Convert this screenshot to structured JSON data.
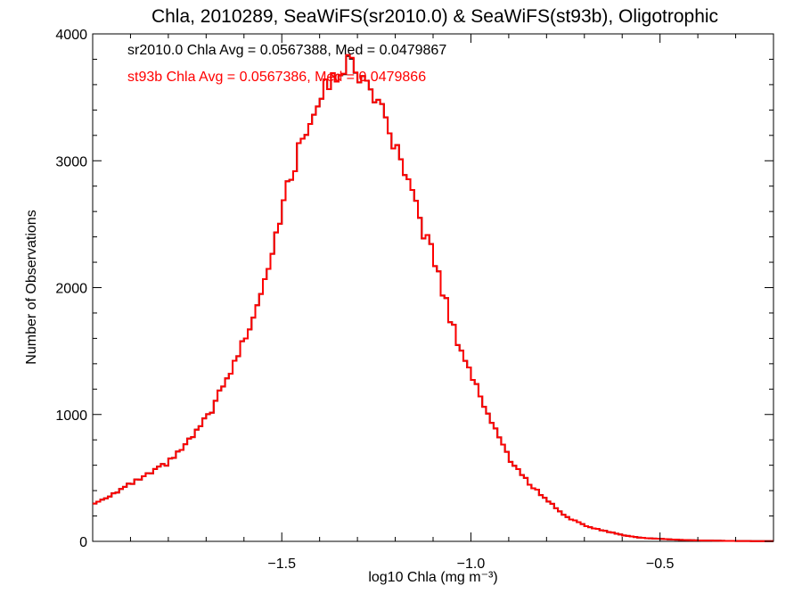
{
  "chart_data": {
    "type": "line",
    "title": "Chla, 2010289, SeaWiFS(sr2010.0) & SeaWiFS(st93b), Oligotrophic",
    "xlabel": "log10 Chla (mg m⁻³)",
    "ylabel": "Number of Observations",
    "xlim": [
      -2.0,
      -0.2
    ],
    "ylim": [
      0,
      4000
    ],
    "xticks": [
      -1.5,
      -1.0,
      -0.5
    ],
    "xtick_labels": [
      "−1.5",
      "−1.0",
      "−0.5"
    ],
    "yticks": [
      0,
      1000,
      2000,
      3000,
      4000
    ],
    "ytick_labels": [
      "0",
      "1000",
      "2000",
      "3000",
      "4000"
    ],
    "grid": false,
    "annotations": [
      {
        "text": "sr2010.0 Chla Avg = 0.0567388, Med = 0.0479867",
        "color": "#000000"
      },
      {
        "text": "st93b Chla Avg = 0.0567386, Med = 0.0479866",
        "color": "#ff0000"
      }
    ],
    "series": [
      {
        "color": "#000000",
        "x": [
          -2.0,
          -1.95,
          -1.9,
          -1.85,
          -1.8,
          -1.75,
          -1.7,
          -1.65,
          -1.6,
          -1.55,
          -1.5,
          -1.45,
          -1.4,
          -1.35,
          -1.32,
          -1.3,
          -1.28,
          -1.25,
          -1.2,
          -1.15,
          -1.1,
          -1.05,
          -1.0,
          -0.95,
          -0.9,
          -0.85,
          -0.8,
          -0.75,
          -0.7,
          -0.65,
          -0.6,
          -0.55,
          -0.5,
          -0.45,
          -0.4,
          -0.35,
          -0.3,
          -0.25,
          -0.2
        ],
        "y": [
          290,
          370,
          450,
          530,
          620,
          770,
          960,
          1240,
          1580,
          2020,
          2620,
          3130,
          3520,
          3700,
          3780,
          3700,
          3620,
          3500,
          3100,
          2660,
          2250,
          1710,
          1320,
          980,
          660,
          470,
          330,
          200,
          125,
          85,
          50,
          28,
          20,
          12,
          7,
          5,
          3,
          2,
          2
        ]
      },
      {
        "color": "#ff0000",
        "x": [
          -2.0,
          -1.95,
          -1.9,
          -1.85,
          -1.8,
          -1.75,
          -1.7,
          -1.65,
          -1.6,
          -1.55,
          -1.5,
          -1.45,
          -1.4,
          -1.35,
          -1.32,
          -1.3,
          -1.28,
          -1.25,
          -1.2,
          -1.15,
          -1.1,
          -1.05,
          -1.0,
          -0.95,
          -0.9,
          -0.85,
          -0.8,
          -0.75,
          -0.7,
          -0.65,
          -0.6,
          -0.55,
          -0.5,
          -0.45,
          -0.4,
          -0.35,
          -0.3,
          -0.25,
          -0.2
        ],
        "y": [
          290,
          370,
          450,
          530,
          620,
          770,
          960,
          1240,
          1580,
          2020,
          2620,
          3130,
          3520,
          3700,
          3790,
          3700,
          3620,
          3500,
          3100,
          2660,
          2250,
          1710,
          1320,
          980,
          660,
          470,
          330,
          200,
          125,
          85,
          50,
          28,
          20,
          12,
          7,
          5,
          3,
          2,
          2
        ]
      }
    ]
  }
}
